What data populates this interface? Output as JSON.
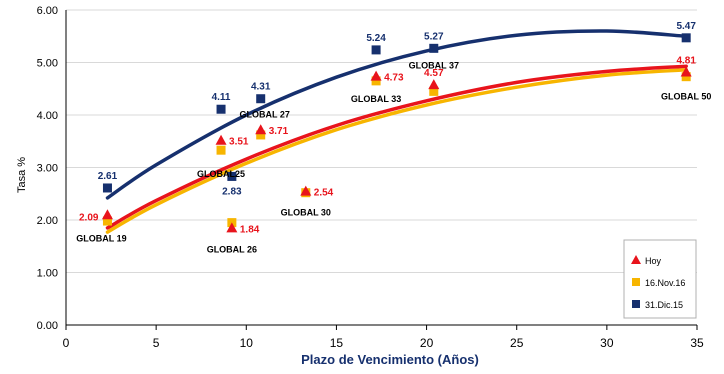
{
  "chart_data": {
    "type": "scatter",
    "xlabel": "Plazo de Vencimiento  (Años)",
    "ylabel": "Tasa %",
    "xlim": [
      0,
      35
    ],
    "ylim": [
      0,
      6
    ],
    "x_ticks": [
      0,
      5,
      10,
      15,
      20,
      25,
      30,
      35
    ],
    "y_ticks": [
      0,
      1,
      2,
      3,
      4,
      5,
      6
    ],
    "y_tick_labels": [
      "0.00",
      "1.00",
      "2.00",
      "3.00",
      "4.00",
      "5.00",
      "6.00"
    ],
    "grid": "horizontal",
    "legend_position": "bottom-right",
    "series": [
      {
        "name": "Hoy",
        "marker": "triangle",
        "color": "#e8141c",
        "points": [
          {
            "x": 2.3,
            "y": 2.09
          },
          {
            "x": 8.6,
            "y": 3.51
          },
          {
            "x": 9.2,
            "y": 1.84
          },
          {
            "x": 10.8,
            "y": 3.71
          },
          {
            "x": 13.3,
            "y": 2.54
          },
          {
            "x": 17.2,
            "y": 4.73
          },
          {
            "x": 20.4,
            "y": 4.57
          },
          {
            "x": 34.4,
            "y": 4.81
          }
        ],
        "trend": [
          {
            "x": 2.3,
            "y": 1.85
          },
          {
            "x": 5,
            "y": 2.37
          },
          {
            "x": 10,
            "y": 3.16
          },
          {
            "x": 15,
            "y": 3.8
          },
          {
            "x": 20,
            "y": 4.27
          },
          {
            "x": 25,
            "y": 4.62
          },
          {
            "x": 30,
            "y": 4.83
          },
          {
            "x": 34.4,
            "y": 4.93
          }
        ]
      },
      {
        "name": "16.Nov.16",
        "marker": "square",
        "color": "#f7b500",
        "points": [
          {
            "x": 2.3,
            "y": 1.98
          },
          {
            "x": 8.6,
            "y": 3.33
          },
          {
            "x": 9.2,
            "y": 1.95
          },
          {
            "x": 10.8,
            "y": 3.62
          },
          {
            "x": 13.3,
            "y": 2.52
          },
          {
            "x": 17.2,
            "y": 4.65
          },
          {
            "x": 20.4,
            "y": 4.45
          },
          {
            "x": 34.4,
            "y": 4.73
          }
        ],
        "trend": [
          {
            "x": 2.3,
            "y": 1.77
          },
          {
            "x": 5,
            "y": 2.29
          },
          {
            "x": 10,
            "y": 3.08
          },
          {
            "x": 15,
            "y": 3.72
          },
          {
            "x": 20,
            "y": 4.19
          },
          {
            "x": 25,
            "y": 4.53
          },
          {
            "x": 30,
            "y": 4.76
          },
          {
            "x": 34.4,
            "y": 4.86
          }
        ]
      },
      {
        "name": "31.Dic.15",
        "marker": "square",
        "color": "#16306e",
        "points": [
          {
            "x": 2.3,
            "y": 2.61
          },
          {
            "x": 8.6,
            "y": 4.11
          },
          {
            "x": 9.2,
            "y": 2.83
          },
          {
            "x": 10.8,
            "y": 4.31
          },
          {
            "x": 17.2,
            "y": 5.24
          },
          {
            "x": 20.4,
            "y": 5.27
          },
          {
            "x": 34.4,
            "y": 5.47
          }
        ],
        "trend": [
          {
            "x": 2.3,
            "y": 2.42
          },
          {
            "x": 5,
            "y": 3.05
          },
          {
            "x": 10,
            "y": 4.0
          },
          {
            "x": 15,
            "y": 4.72
          },
          {
            "x": 20,
            "y": 5.22
          },
          {
            "x": 25,
            "y": 5.52
          },
          {
            "x": 30,
            "y": 5.6
          },
          {
            "x": 34.4,
            "y": 5.5
          }
        ]
      }
    ],
    "value_labels": [
      {
        "text": "2.09",
        "x": 2.3,
        "y": 2.09,
        "color": "#e8141c",
        "anchor": "left"
      },
      {
        "text": "2.61",
        "x": 2.3,
        "y": 2.61,
        "color": "#16306e",
        "anchor": "above"
      },
      {
        "text": "3.51",
        "x": 8.6,
        "y": 3.51,
        "color": "#e8141c",
        "anchor": "right"
      },
      {
        "text": "4.11",
        "x": 8.6,
        "y": 4.11,
        "color": "#16306e",
        "anchor": "above"
      },
      {
        "text": "1.84",
        "x": 9.2,
        "y": 1.84,
        "color": "#e8141c",
        "anchor": "right"
      },
      {
        "text": "2.83",
        "x": 9.2,
        "y": 2.83,
        "color": "#16306e",
        "anchor": "below"
      },
      {
        "text": "3.71",
        "x": 10.8,
        "y": 3.71,
        "color": "#e8141c",
        "anchor": "right"
      },
      {
        "text": "4.31",
        "x": 10.8,
        "y": 4.31,
        "color": "#16306e",
        "anchor": "above"
      },
      {
        "text": "2.54",
        "x": 13.3,
        "y": 2.54,
        "color": "#e8141c",
        "anchor": "right"
      },
      {
        "text": "4.73",
        "x": 17.2,
        "y": 4.73,
        "color": "#e8141c",
        "anchor": "right"
      },
      {
        "text": "5.24",
        "x": 17.2,
        "y": 5.24,
        "color": "#16306e",
        "anchor": "above"
      },
      {
        "text": "4.57",
        "x": 20.4,
        "y": 4.57,
        "color": "#e8141c",
        "anchor": "above"
      },
      {
        "text": "5.27",
        "x": 20.4,
        "y": 5.27,
        "color": "#16306e",
        "anchor": "above"
      },
      {
        "text": "4.81",
        "x": 34.4,
        "y": 4.81,
        "color": "#e8141c",
        "anchor": "above"
      },
      {
        "text": "5.47",
        "x": 34.4,
        "y": 5.47,
        "color": "#16306e",
        "anchor": "above"
      }
    ],
    "bond_labels": [
      {
        "text": "GLOBAL 19",
        "x": 2.3,
        "y": 2.09
      },
      {
        "text": "GLOBAL25",
        "x": 8.6,
        "y": 3.33
      },
      {
        "text": "GLOBAL 26",
        "x": 9.2,
        "y": 1.84
      },
      {
        "text": "GLOBAL 27",
        "x": 10.8,
        "y": 4.31
      },
      {
        "text": "GLOBAL 30",
        "x": 13.3,
        "y": 2.54
      },
      {
        "text": "GLOBAL 33",
        "x": 17.2,
        "y": 4.65
      },
      {
        "text": "GLOBAL 37",
        "x": 20.4,
        "y": 5.27
      },
      {
        "text": "GLOBAL 50",
        "x": 34.4,
        "y": 4.73
      }
    ]
  }
}
